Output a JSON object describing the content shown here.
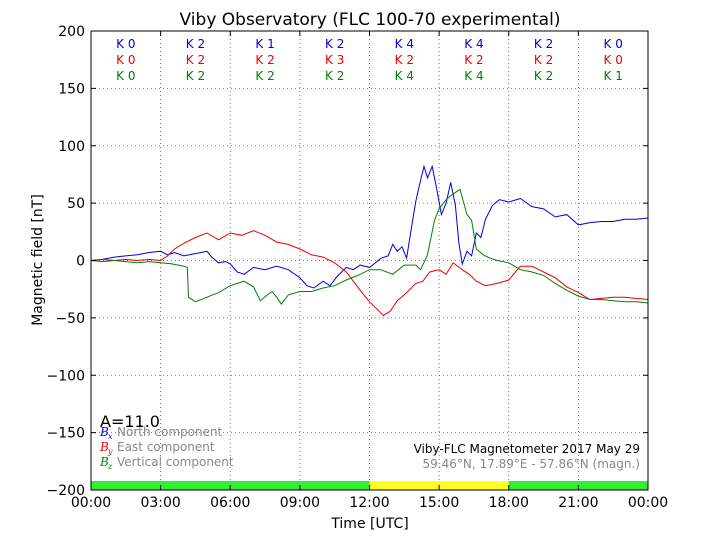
{
  "chart_data": {
    "type": "line",
    "title": "Viby Observatory (FLC 100-70 experimental)",
    "xlabel": "Time [UTC]",
    "ylabel": "Magnetic field [nT]",
    "xlim": [
      0,
      24
    ],
    "ylim": [
      -200,
      200
    ],
    "x_ticks": [
      "00:00",
      "03:00",
      "06:00",
      "09:00",
      "12:00",
      "15:00",
      "18:00",
      "21:00",
      "00:00"
    ],
    "y_ticks": [
      "200",
      "150",
      "100",
      "50",
      "0",
      "−50",
      "−100",
      "−150",
      "−200"
    ],
    "y_tick_values": [
      200,
      150,
      100,
      50,
      0,
      -50,
      -100,
      -150,
      -200
    ],
    "grid": true,
    "k_indices": {
      "label_prefix": "K",
      "rows": [
        {
          "component": "north",
          "color": "#0000dd",
          "values": [
            0,
            2,
            1,
            2,
            4,
            4,
            2,
            0
          ]
        },
        {
          "component": "east",
          "color": "#ee0000",
          "values": [
            0,
            2,
            2,
            3,
            2,
            2,
            2,
            0
          ]
        },
        {
          "component": "vertical",
          "color": "#008000",
          "values": [
            0,
            2,
            2,
            2,
            4,
            4,
            2,
            1
          ]
        }
      ]
    },
    "activity_bar": [
      {
        "from": 0,
        "to": 12,
        "color": "#33ee33"
      },
      {
        "from": 12,
        "to": 18,
        "color": "#ffff22"
      },
      {
        "from": 18,
        "to": 24,
        "color": "#33ee33"
      }
    ],
    "a_index_label": "A=11.0",
    "legend": {
      "placement": "bottom-left",
      "entries": [
        {
          "symbol": "B",
          "sub": "x",
          "text": "North component",
          "color": "#0000dd"
        },
        {
          "symbol": "B",
          "sub": "y",
          "text": "East component",
          "color": "#ee0000"
        },
        {
          "symbol": "B",
          "sub": "z",
          "text": "Vertical component",
          "color": "#008000"
        }
      ]
    },
    "info_lines": [
      "Viby-FLC Magnetometer 2017 May 29",
      "59.46°N, 17.89°E - 57.86°N (magn.)"
    ],
    "series": [
      {
        "name": "North component",
        "color": "#0000dd",
        "points": [
          [
            0,
            0
          ],
          [
            0.5,
            1
          ],
          [
            1,
            3
          ],
          [
            1.5,
            4
          ],
          [
            2,
            5
          ],
          [
            2.5,
            7
          ],
          [
            3,
            8
          ],
          [
            3.3,
            5
          ],
          [
            3.6,
            7
          ],
          [
            4,
            4
          ],
          [
            4.5,
            6
          ],
          [
            5,
            8
          ],
          [
            5.2,
            3
          ],
          [
            5.5,
            -2
          ],
          [
            5.8,
            -1
          ],
          [
            6,
            -3
          ],
          [
            6.3,
            -10
          ],
          [
            6.6,
            -12
          ],
          [
            7,
            -6
          ],
          [
            7.5,
            -8
          ],
          [
            8,
            -5
          ],
          [
            8.5,
            -8
          ],
          [
            9,
            -15
          ],
          [
            9.3,
            -22
          ],
          [
            9.6,
            -24
          ],
          [
            10,
            -18
          ],
          [
            10.3,
            -22
          ],
          [
            10.6,
            -14
          ],
          [
            11,
            -6
          ],
          [
            11.3,
            -8
          ],
          [
            11.6,
            -4
          ],
          [
            12,
            -6
          ],
          [
            12.2,
            -3
          ],
          [
            12.5,
            2
          ],
          [
            12.8,
            4
          ],
          [
            13,
            14
          ],
          [
            13.2,
            8
          ],
          [
            13.4,
            12
          ],
          [
            13.6,
            2
          ],
          [
            13.8,
            28
          ],
          [
            14,
            52
          ],
          [
            14.2,
            70
          ],
          [
            14.35,
            82
          ],
          [
            14.5,
            72
          ],
          [
            14.7,
            82
          ],
          [
            14.9,
            62
          ],
          [
            15.1,
            40
          ],
          [
            15.3,
            50
          ],
          [
            15.5,
            68
          ],
          [
            15.7,
            48
          ],
          [
            15.85,
            15
          ],
          [
            16,
            -3
          ],
          [
            16.2,
            8
          ],
          [
            16.4,
            4
          ],
          [
            16.6,
            24
          ],
          [
            16.8,
            20
          ],
          [
            17,
            36
          ],
          [
            17.3,
            48
          ],
          [
            17.6,
            53
          ],
          [
            18,
            51
          ],
          [
            18.5,
            54
          ],
          [
            19,
            47
          ],
          [
            19.5,
            45
          ],
          [
            20,
            38
          ],
          [
            20.5,
            40
          ],
          [
            21,
            31
          ],
          [
            21.5,
            33
          ],
          [
            22,
            34
          ],
          [
            22.5,
            34
          ],
          [
            23,
            36
          ],
          [
            23.5,
            36
          ],
          [
            24,
            37
          ]
        ]
      },
      {
        "name": "East component",
        "color": "#ee0000",
        "points": [
          [
            0,
            0
          ],
          [
            0.5,
            1
          ],
          [
            1,
            0
          ],
          [
            1.5,
            1
          ],
          [
            2,
            0
          ],
          [
            2.5,
            1
          ],
          [
            3,
            0
          ],
          [
            3.3,
            4
          ],
          [
            3.6,
            10
          ],
          [
            4,
            15
          ],
          [
            4.5,
            20
          ],
          [
            5,
            24
          ],
          [
            5.5,
            18
          ],
          [
            6,
            24
          ],
          [
            6.5,
            22
          ],
          [
            7,
            26
          ],
          [
            7.5,
            22
          ],
          [
            8,
            16
          ],
          [
            8.5,
            14
          ],
          [
            9,
            10
          ],
          [
            9.5,
            5
          ],
          [
            10,
            3
          ],
          [
            10.5,
            -2
          ],
          [
            11,
            -10
          ],
          [
            11.3,
            -18
          ],
          [
            11.6,
            -26
          ],
          [
            12,
            -36
          ],
          [
            12.3,
            -42
          ],
          [
            12.6,
            -48
          ],
          [
            12.9,
            -44
          ],
          [
            13.2,
            -35
          ],
          [
            13.6,
            -28
          ],
          [
            14,
            -20
          ],
          [
            14.3,
            -18
          ],
          [
            14.6,
            -10
          ],
          [
            15,
            -8
          ],
          [
            15.3,
            -12
          ],
          [
            15.6,
            -2
          ],
          [
            16,
            -8
          ],
          [
            16.3,
            -12
          ],
          [
            16.6,
            -18
          ],
          [
            17,
            -22
          ],
          [
            17.5,
            -20
          ],
          [
            18,
            -17
          ],
          [
            18.5,
            -5
          ],
          [
            19,
            -5
          ],
          [
            19.5,
            -10
          ],
          [
            20,
            -15
          ],
          [
            20.5,
            -23
          ],
          [
            21,
            -28
          ],
          [
            21.5,
            -34
          ],
          [
            22,
            -33
          ],
          [
            22.5,
            -32
          ],
          [
            23,
            -32
          ],
          [
            23.5,
            -33
          ],
          [
            24,
            -34
          ]
        ]
      },
      {
        "name": "Vertical component",
        "color": "#008000",
        "points": [
          [
            0,
            0
          ],
          [
            0.5,
            -1
          ],
          [
            1,
            0
          ],
          [
            1.5,
            -1
          ],
          [
            2,
            -2
          ],
          [
            2.5,
            -1
          ],
          [
            3,
            -2
          ],
          [
            3.5,
            -3
          ],
          [
            4,
            -5
          ],
          [
            4.15,
            -6
          ],
          [
            4.2,
            -32
          ],
          [
            4.5,
            -36
          ],
          [
            5,
            -32
          ],
          [
            5.5,
            -28
          ],
          [
            6,
            -22
          ],
          [
            6.3,
            -20
          ],
          [
            6.6,
            -18
          ],
          [
            7,
            -23
          ],
          [
            7.3,
            -35
          ],
          [
            7.6,
            -30
          ],
          [
            7.8,
            -27
          ],
          [
            8,
            -32
          ],
          [
            8.2,
            -38
          ],
          [
            8.5,
            -30
          ],
          [
            9,
            -27
          ],
          [
            9.5,
            -27
          ],
          [
            10,
            -24
          ],
          [
            10.5,
            -22
          ],
          [
            11,
            -17
          ],
          [
            11.5,
            -13
          ],
          [
            12,
            -8
          ],
          [
            12.5,
            -8
          ],
          [
            13,
            -12
          ],
          [
            13.5,
            -4
          ],
          [
            14,
            -4
          ],
          [
            14.2,
            -8
          ],
          [
            14.5,
            5
          ],
          [
            14.8,
            35
          ],
          [
            15,
            45
          ],
          [
            15.3,
            53
          ],
          [
            15.6,
            58
          ],
          [
            15.9,
            62
          ],
          [
            16.2,
            40
          ],
          [
            16.4,
            35
          ],
          [
            16.6,
            10
          ],
          [
            16.9,
            5
          ],
          [
            17.2,
            2
          ],
          [
            17.5,
            0
          ],
          [
            18,
            -2
          ],
          [
            18.5,
            -8
          ],
          [
            19,
            -10
          ],
          [
            19.5,
            -13
          ],
          [
            20,
            -20
          ],
          [
            20.5,
            -26
          ],
          [
            21,
            -31
          ],
          [
            21.5,
            -34
          ],
          [
            22,
            -34
          ],
          [
            22.5,
            -35
          ],
          [
            23,
            -36
          ],
          [
            23.5,
            -36
          ],
          [
            24,
            -37
          ]
        ]
      }
    ]
  }
}
